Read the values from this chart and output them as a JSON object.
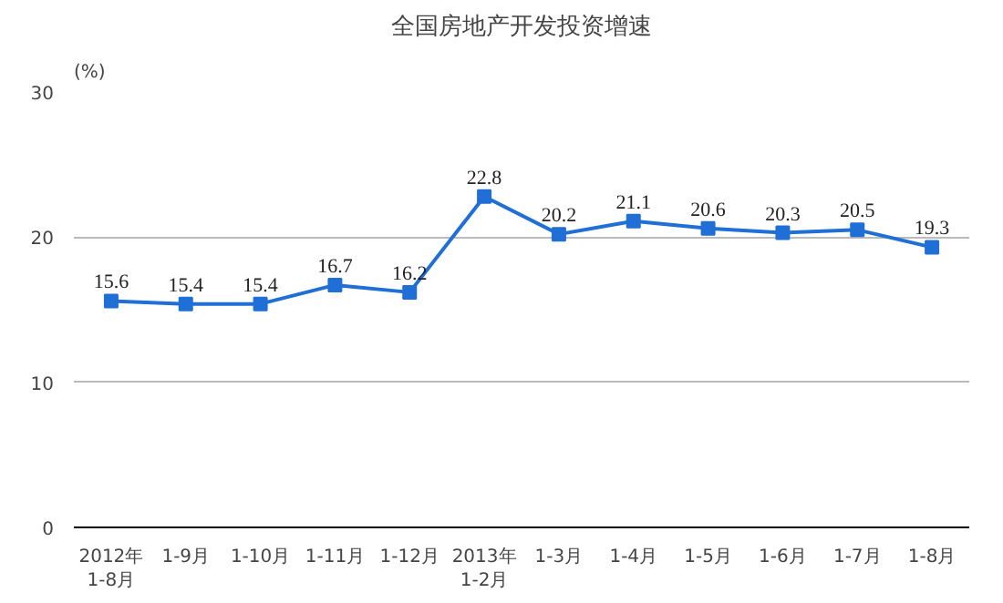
{
  "chart_data": {
    "type": "line",
    "title": "全国房地产开发投资增速",
    "ylabel": "(%)",
    "categories": [
      "2012年\n1-8月",
      "1-9月",
      "1-10月",
      "1-11月",
      "1-12月",
      "2013年\n1-2月",
      "1-3月",
      "1-4月",
      "1-5月",
      "1-6月",
      "1-7月",
      "1-8月"
    ],
    "series": [
      {
        "color": "#1f6fd6",
        "values": [
          15.6,
          15.4,
          15.4,
          16.7,
          16.2,
          22.8,
          20.2,
          21.1,
          20.6,
          20.3,
          20.5,
          19.3
        ]
      }
    ],
    "ylim": [
      0,
      30
    ],
    "yticks": [
      0,
      10,
      20,
      30
    ],
    "grid": "y",
    "marker": "square",
    "line_style": "solid",
    "data_labels": true
  }
}
